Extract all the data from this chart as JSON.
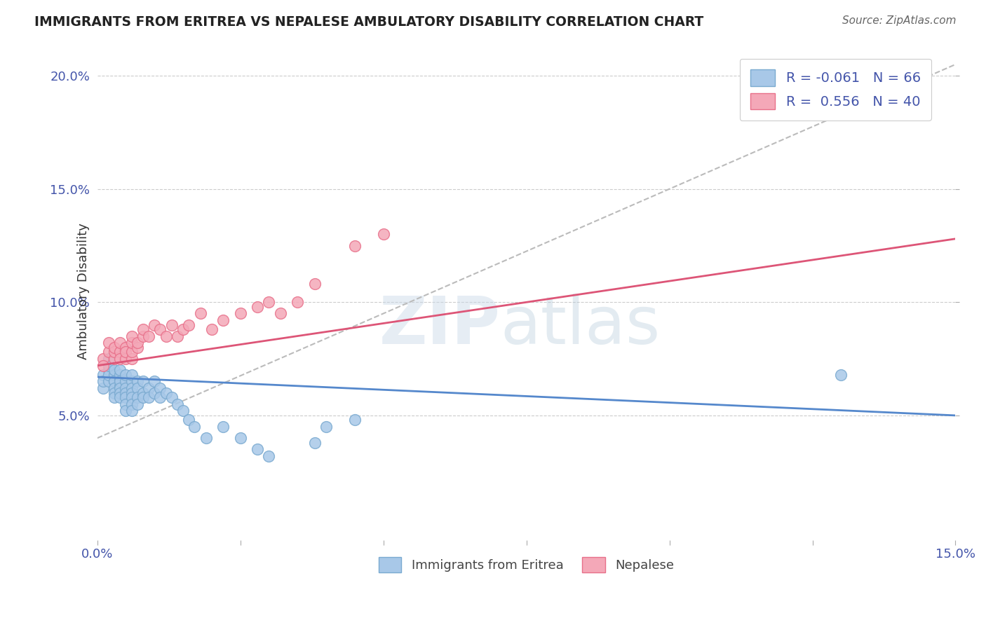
{
  "title": "IMMIGRANTS FROM ERITREA VS NEPALESE AMBULATORY DISABILITY CORRELATION CHART",
  "source": "Source: ZipAtlas.com",
  "ylabel": "Ambulatory Disability",
  "xlim": [
    0.0,
    0.15
  ],
  "ylim": [
    -0.005,
    0.215
  ],
  "plot_ylim": [
    -0.005,
    0.215
  ],
  "x_ticks": [
    0.0,
    0.025,
    0.05,
    0.075,
    0.1,
    0.125,
    0.15
  ],
  "x_tick_labels": [
    "0.0%",
    "",
    "",
    "",
    "",
    "",
    "15.0%"
  ],
  "y_ticks": [
    0.05,
    0.1,
    0.15,
    0.2
  ],
  "y_tick_labels": [
    "5.0%",
    "10.0%",
    "15.0%",
    "20.0%"
  ],
  "legend_entry1": "R = -0.061   N = 66",
  "legend_entry2": "R =  0.556   N = 40",
  "legend_label1": "Immigrants from Eritrea",
  "legend_label2": "Nepalese",
  "color_eritrea": "#a8c8e8",
  "color_nepalese": "#f4a8b8",
  "edge_eritrea": "#7aaad0",
  "edge_nepalese": "#e8708a",
  "trend_eritrea": "#5588cc",
  "trend_nepalese": "#dd5577",
  "trend_gray": "#bbbbbb",
  "background_color": "#ffffff",
  "eritrea_x": [
    0.001,
    0.001,
    0.001,
    0.002,
    0.002,
    0.002,
    0.002,
    0.002,
    0.003,
    0.003,
    0.003,
    0.003,
    0.003,
    0.003,
    0.003,
    0.003,
    0.004,
    0.004,
    0.004,
    0.004,
    0.004,
    0.004,
    0.004,
    0.004,
    0.005,
    0.005,
    0.005,
    0.005,
    0.005,
    0.005,
    0.005,
    0.006,
    0.006,
    0.006,
    0.006,
    0.006,
    0.006,
    0.006,
    0.007,
    0.007,
    0.007,
    0.007,
    0.008,
    0.008,
    0.008,
    0.009,
    0.009,
    0.01,
    0.01,
    0.011,
    0.011,
    0.012,
    0.013,
    0.014,
    0.015,
    0.016,
    0.017,
    0.019,
    0.022,
    0.025,
    0.028,
    0.03,
    0.038,
    0.04,
    0.045,
    0.13
  ],
  "eritrea_y": [
    0.062,
    0.068,
    0.065,
    0.07,
    0.065,
    0.068,
    0.072,
    0.075,
    0.062,
    0.065,
    0.068,
    0.07,
    0.065,
    0.062,
    0.06,
    0.058,
    0.063,
    0.066,
    0.068,
    0.07,
    0.065,
    0.062,
    0.06,
    0.058,
    0.065,
    0.068,
    0.062,
    0.06,
    0.058,
    0.055,
    0.052,
    0.065,
    0.062,
    0.068,
    0.06,
    0.058,
    0.055,
    0.052,
    0.065,
    0.062,
    0.058,
    0.055,
    0.065,
    0.06,
    0.058,
    0.062,
    0.058,
    0.065,
    0.06,
    0.062,
    0.058,
    0.06,
    0.058,
    0.055,
    0.052,
    0.048,
    0.045,
    0.04,
    0.045,
    0.04,
    0.035,
    0.032,
    0.038,
    0.045,
    0.048,
    0.068
  ],
  "nepalese_x": [
    0.001,
    0.001,
    0.002,
    0.002,
    0.003,
    0.003,
    0.003,
    0.004,
    0.004,
    0.004,
    0.005,
    0.005,
    0.005,
    0.006,
    0.006,
    0.006,
    0.006,
    0.007,
    0.007,
    0.008,
    0.008,
    0.009,
    0.01,
    0.011,
    0.012,
    0.013,
    0.014,
    0.015,
    0.016,
    0.018,
    0.02,
    0.022,
    0.025,
    0.028,
    0.03,
    0.032,
    0.035,
    0.038,
    0.045,
    0.05
  ],
  "nepalese_y": [
    0.075,
    0.072,
    0.078,
    0.082,
    0.075,
    0.078,
    0.08,
    0.078,
    0.082,
    0.075,
    0.08,
    0.075,
    0.078,
    0.075,
    0.078,
    0.082,
    0.085,
    0.08,
    0.082,
    0.085,
    0.088,
    0.085,
    0.09,
    0.088,
    0.085,
    0.09,
    0.085,
    0.088,
    0.09,
    0.095,
    0.088,
    0.092,
    0.095,
    0.098,
    0.1,
    0.095,
    0.1,
    0.108,
    0.125,
    0.13
  ],
  "gray_line_x": [
    0.0,
    0.15
  ],
  "gray_line_y": [
    0.04,
    0.205
  ],
  "blue_trend_x": [
    0.0,
    0.15
  ],
  "blue_trend_y": [
    0.067,
    0.05
  ],
  "pink_trend_x": [
    0.0,
    0.15
  ],
  "pink_trend_y": [
    0.072,
    0.128
  ]
}
